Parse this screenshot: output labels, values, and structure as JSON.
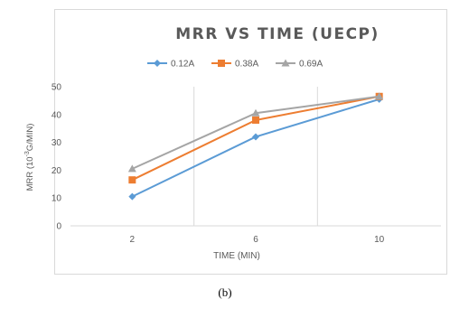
{
  "caption": "(b)",
  "chart_data": {
    "type": "line",
    "title": "MRR VS TIME (UECP)",
    "xlabel": "TIME (MIN)",
    "ylabel": "MRR (10^-3 G/MIN)",
    "ylabel_parts": {
      "before": "MRR (10",
      "superscript": "-3",
      "after": "G/MIN)"
    },
    "categories": [
      "2",
      "6",
      "10"
    ],
    "yticks": [
      "0",
      "10",
      "20",
      "30",
      "40",
      "50"
    ],
    "ylim": [
      0,
      50
    ],
    "grid": "vertical-only",
    "legend_position": "top",
    "series": [
      {
        "name": "0.12A",
        "values": [
          10.5,
          32,
          45.5
        ],
        "color": "#5B9BD5",
        "marker": "diamond"
      },
      {
        "name": "0.38A",
        "values": [
          16.5,
          38,
          46.5
        ],
        "color": "#ED7D31",
        "marker": "square"
      },
      {
        "name": "0.69A",
        "values": [
          20.5,
          40.5,
          46.5
        ],
        "color": "#A5A5A5",
        "marker": "triangle"
      }
    ]
  }
}
